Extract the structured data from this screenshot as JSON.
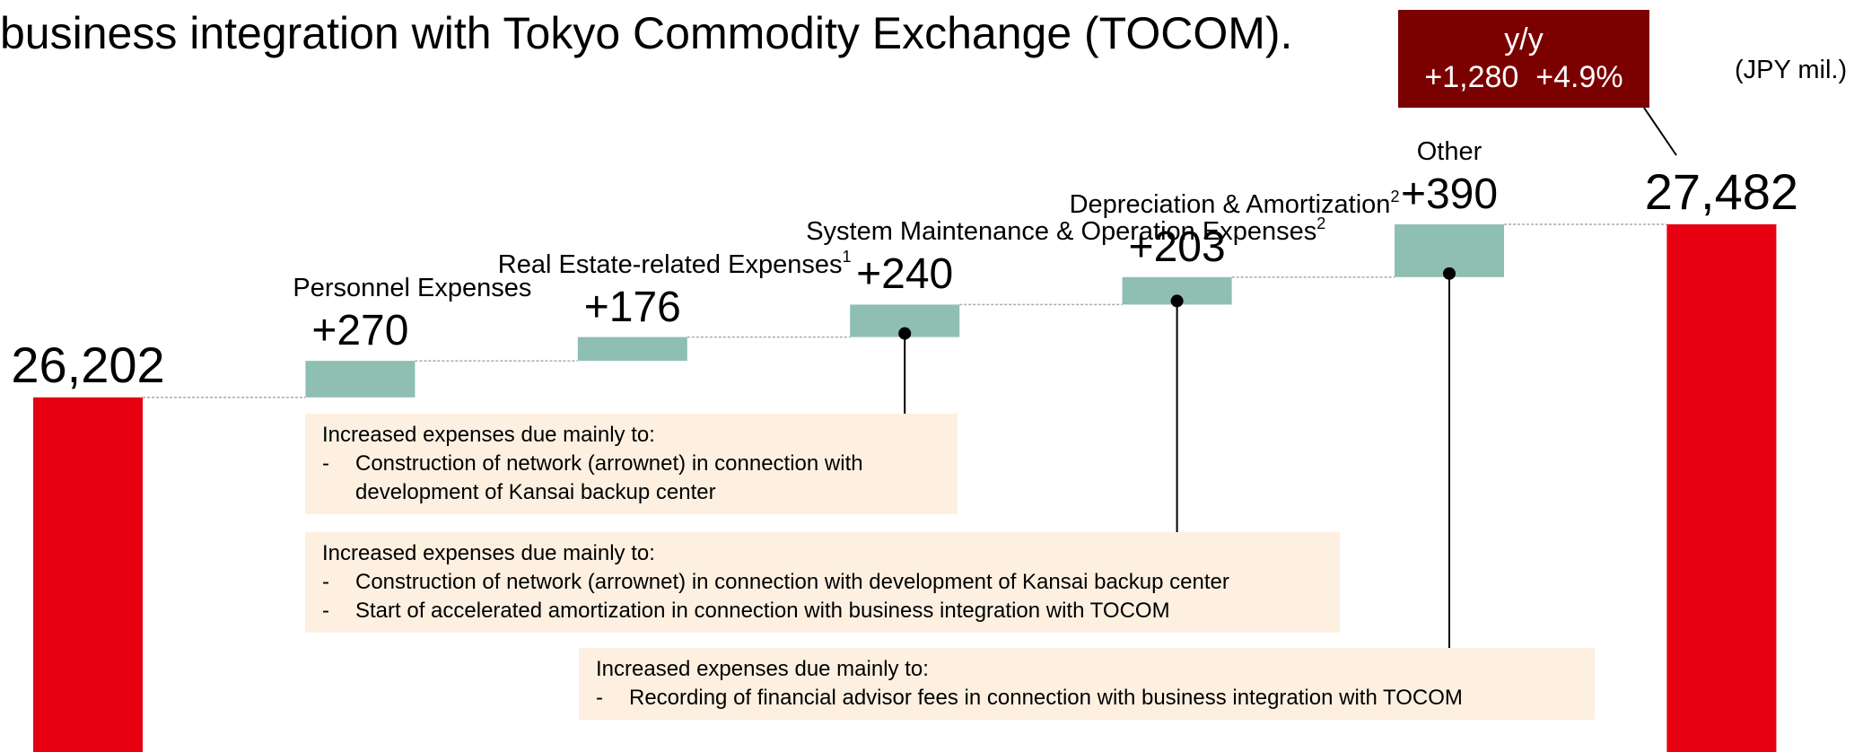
{
  "chart_data": {
    "type": "waterfall",
    "title": "business integration with Tokyo Commodity Exchange (TOCOM).",
    "unit_label": "(JPY mil.)",
    "categories": [
      null,
      "Personnel Expenses",
      "Real Estate-related Expenses",
      "System Maintenance & Operation Expenses",
      "Depreciation & Amortization",
      "Other",
      null
    ],
    "category_notes": [
      null,
      null,
      "1",
      "2",
      "2",
      null,
      null
    ],
    "measures": [
      "absolute",
      "relative",
      "relative",
      "relative",
      "relative",
      "relative",
      "total"
    ],
    "values": [
      26202,
      270,
      176,
      240,
      203,
      390,
      27482
    ],
    "value_labels": [
      "26,202",
      "+270",
      "+176",
      "+240",
      "+203",
      "+390",
      "27,482"
    ],
    "colors": {
      "absolute": "#e60012",
      "relative": "#8fbeb3",
      "total": "#e60012"
    },
    "ylim": [
      23580,
      29140
    ],
    "change": {
      "label": "y/y",
      "value": 1280,
      "value_label": "+1,280",
      "percent": 4.9,
      "percent_label": "+4.9%"
    },
    "callouts": [
      {
        "heading": "Increased expenses due mainly to:",
        "items": [
          "Construction of network (arrownet) in connection with development of Kansai backup center"
        ]
      },
      {
        "heading": "Increased expenses due mainly to:",
        "items": [
          "Construction of network (arrownet) in connection with development of Kansai backup center",
          "Start of accelerated amortization in connection with business integration with TOCOM"
        ]
      },
      {
        "heading": "Increased expenses due mainly to:",
        "items": [
          "Recording of financial advisor fees in connection with business integration with TOCOM"
        ]
      }
    ]
  }
}
